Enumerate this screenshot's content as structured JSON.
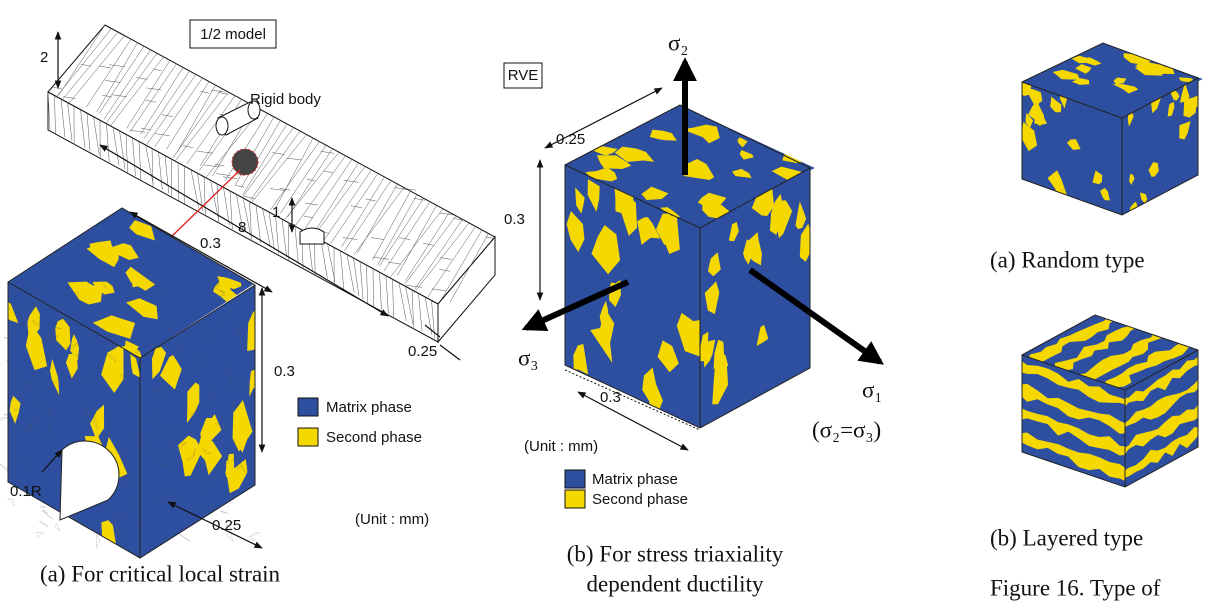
{
  "panel_a": {
    "labels": {
      "model": "1/2 model",
      "height": "2",
      "rigid_body": "Rigid body",
      "length": "8",
      "notch_depth": "1",
      "cube_width": "0.3",
      "cube_height": "0.3",
      "cube_depth": "0.25",
      "beam_width": "0.25",
      "radius": "0.1R",
      "unit": "(Unit : mm)"
    },
    "legend": [
      "Matrix phase",
      "Second phase"
    ],
    "caption": "(a) For critical local strain"
  },
  "panel_b": {
    "labels": {
      "model": "RVE",
      "sigma_2": "σ₂",
      "width": "0.25",
      "height": "0.3",
      "sigma_3": "σ₃",
      "depth": "0.3",
      "unit": "(Unit : mm)",
      "sigma_1": "σ₁",
      "condition": "(σ₂=σ₃)"
    },
    "legend": [
      "Matrix phase",
      "Second phase"
    ],
    "caption": [
      "(b) For stress triaxiality",
      "dependent ductility"
    ]
  },
  "panel_c": {
    "random": "(a) Random type",
    "layered": "(b) Layered type",
    "figure_caption": "Figure 16. Type of"
  }
}
